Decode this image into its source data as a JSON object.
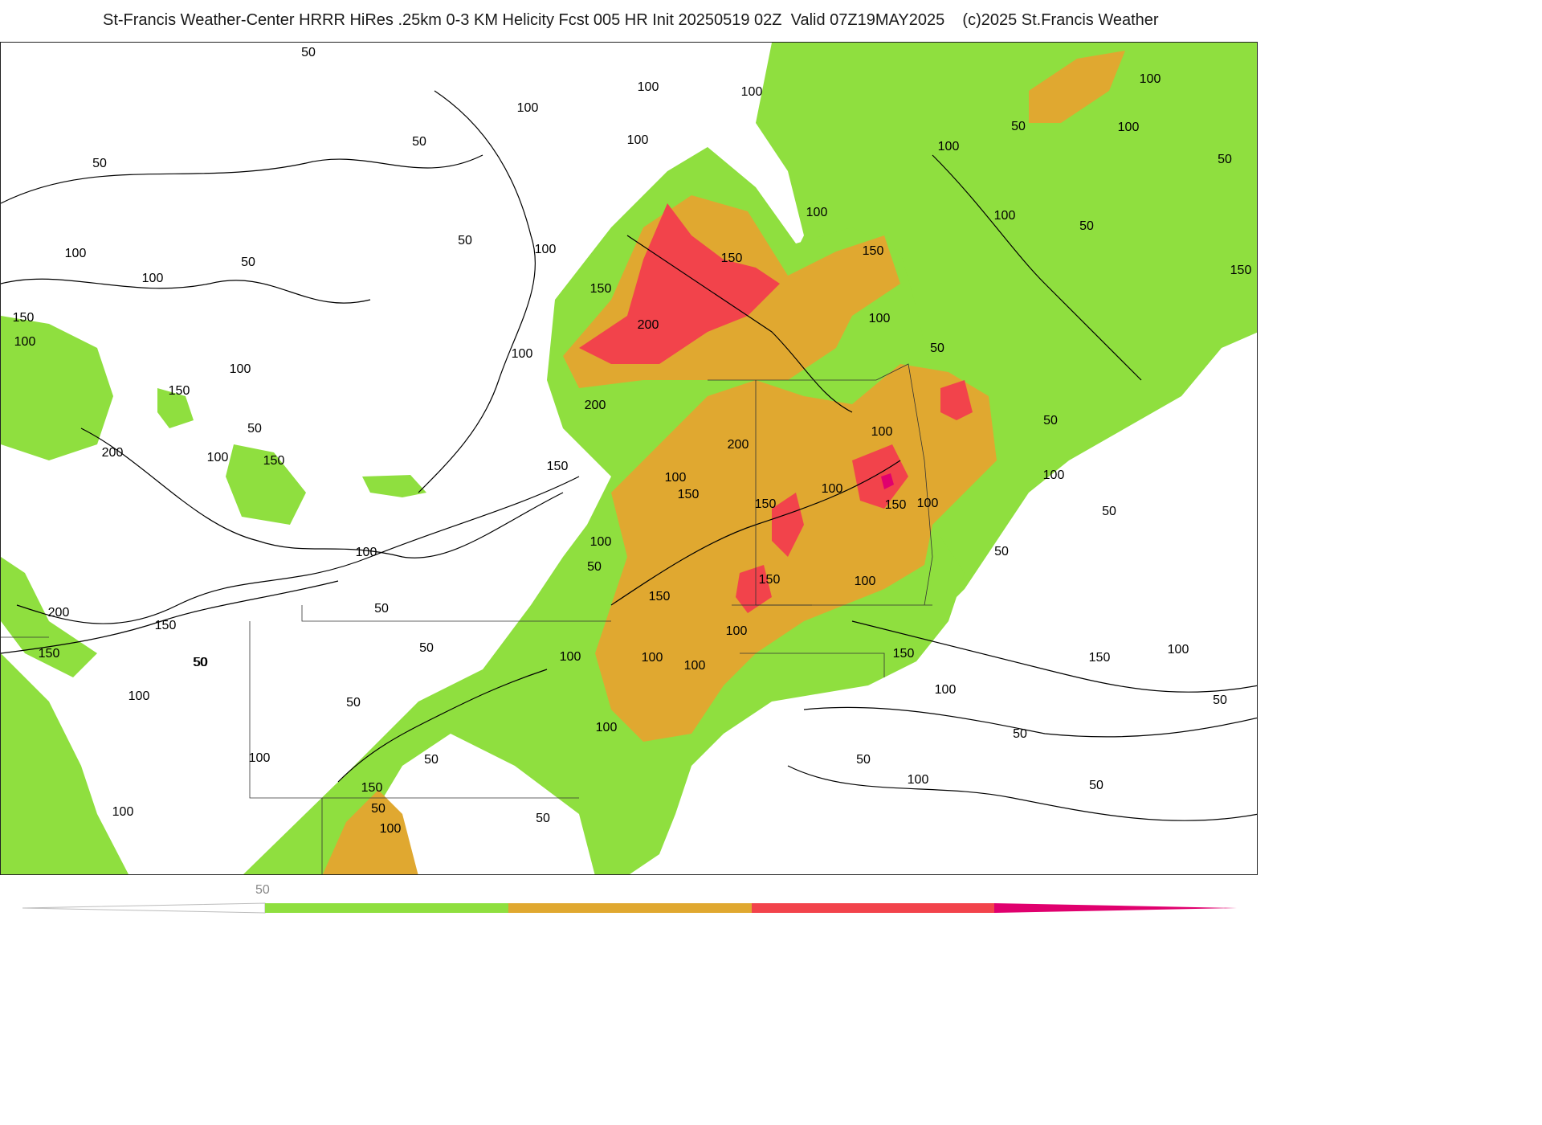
{
  "title": "St-Francis Weather-Center HRRR HiRes .25km 0-3 KM Helicity Fcst 005 HR Init 20250519 02Z  Valid 07Z19MAY2025    (c)2025 St.Francis Weather",
  "colors": {
    "green": "#8fdf3f",
    "orange": "#e0a830",
    "red": "#f2434b",
    "magenta": "#e0006e",
    "contour": "#000000"
  },
  "legend": {
    "tick_label": "50",
    "bands": [
      "green",
      "orange",
      "red",
      "magenta"
    ]
  },
  "contour_labels": [
    "50",
    "100",
    "100",
    "100",
    "50",
    "100",
    "50",
    "100",
    "50",
    "50",
    "100",
    "100",
    "50",
    "100",
    "50",
    "100",
    "100",
    "100",
    "150",
    "150",
    "200",
    "150",
    "150",
    "50",
    "100",
    "100",
    "150",
    "50",
    "100",
    "200",
    "200",
    "100",
    "100",
    "50",
    "150",
    "150",
    "200",
    "150",
    "100",
    "150",
    "100",
    "100",
    "150",
    "100",
    "50",
    "100",
    "100",
    "150",
    "100",
    "150",
    "150",
    "100",
    "50",
    "50",
    "100",
    "50",
    "200",
    "150",
    "150",
    "50",
    "100",
    "50",
    "100",
    "100",
    "100",
    "150",
    "100",
    "50",
    "150",
    "100",
    "50",
    "100",
    "50",
    "50",
    "100",
    "50",
    "50",
    "100",
    "100",
    "50",
    "50",
    "100",
    "150",
    "100",
    "50",
    "50"
  ]
}
